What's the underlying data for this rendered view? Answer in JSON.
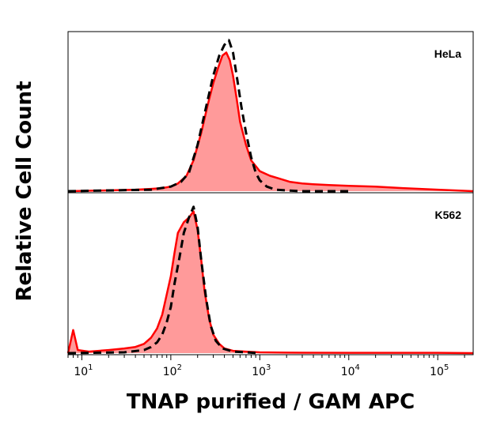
{
  "chart_data": {
    "type": "area",
    "xlabel": "TNAP purified / GAM APC",
    "ylabel": "Relative Cell Count",
    "x_scale": "log",
    "xlim": [
      7,
      250000
    ],
    "x_ticks": [
      {
        "value": 10,
        "base": "10",
        "exp": "1"
      },
      {
        "value": 100,
        "base": "10",
        "exp": "2"
      },
      {
        "value": 1000,
        "base": "10",
        "exp": "3"
      },
      {
        "value": 10000,
        "base": "10",
        "exp": "4"
      },
      {
        "value": 100000,
        "base": "10",
        "exp": "5"
      }
    ],
    "grid": false,
    "colors": {
      "sample_line": "#ff0000",
      "sample_fill": "#ff9a9a",
      "control_line": "#000000"
    },
    "panels": [
      {
        "label": "HeLa",
        "ylim": [
          0,
          1
        ],
        "series": [
          {
            "style": "filled-red",
            "x": [
              7,
              20,
              40,
              60,
              80,
              100,
              120,
              150,
              180,
              220,
              260,
              300,
              340,
              380,
              420,
              460,
              500,
              550,
              600,
              700,
              800,
              1000,
              1300,
              1700,
              2200,
              3000,
              4000,
              6000,
              10000,
              20000,
              40000,
              100000,
              250000
            ],
            "y": [
              0,
              0.005,
              0.01,
              0.015,
              0.02,
              0.03,
              0.05,
              0.1,
              0.2,
              0.38,
              0.56,
              0.7,
              0.8,
              0.88,
              0.9,
              0.85,
              0.75,
              0.6,
              0.45,
              0.3,
              0.2,
              0.13,
              0.1,
              0.08,
              0.06,
              0.05,
              0.045,
              0.04,
              0.035,
              0.03,
              0.02,
              0.01,
              0
            ]
          },
          {
            "style": "dashed-black",
            "x": [
              7,
              60,
              100,
              130,
              160,
              200,
              250,
              300,
              350,
              400,
              450,
              500,
              560,
              620,
              700,
              800,
              900,
              1000,
              1200,
              1500,
              2000,
              3000,
              10000
            ],
            "y": [
              0,
              0.01,
              0.03,
              0.06,
              0.12,
              0.3,
              0.55,
              0.75,
              0.88,
              0.95,
              0.98,
              0.9,
              0.72,
              0.55,
              0.38,
              0.22,
              0.12,
              0.07,
              0.03,
              0.01,
              0.005,
              0,
              0
            ]
          }
        ]
      },
      {
        "label": "K562",
        "ylim": [
          0,
          1
        ],
        "series": [
          {
            "style": "filled-red",
            "x": [
              7,
              8,
              9,
              12,
              20,
              30,
              40,
              50,
              60,
              70,
              80,
              90,
              100,
              110,
              120,
              140,
              160,
              180,
              200,
              220,
              240,
              270,
              300,
              350,
              400,
              500,
              700,
              1000,
              2000,
              10000,
              100000,
              250000
            ],
            "y": [
              0,
              0.15,
              0.02,
              0.01,
              0.02,
              0.03,
              0.04,
              0.06,
              0.1,
              0.16,
              0.25,
              0.38,
              0.5,
              0.65,
              0.78,
              0.85,
              0.88,
              0.92,
              0.8,
              0.6,
              0.4,
              0.22,
              0.12,
              0.06,
              0.03,
              0.015,
              0.01,
              0.005,
              0.003,
              0.002,
              0.002,
              0
            ]
          },
          {
            "style": "dashed-black",
            "x": [
              7,
              30,
              50,
              60,
              70,
              80,
              90,
              100,
              110,
              125,
              140,
              160,
              180,
              200,
              220,
              250,
              280,
              320,
              380,
              500,
              1000
            ],
            "y": [
              0,
              0.005,
              0.02,
              0.04,
              0.07,
              0.12,
              0.2,
              0.3,
              0.45,
              0.62,
              0.78,
              0.88,
              0.95,
              0.82,
              0.6,
              0.35,
              0.18,
              0.08,
              0.03,
              0.01,
              0
            ]
          }
        ]
      }
    ]
  }
}
